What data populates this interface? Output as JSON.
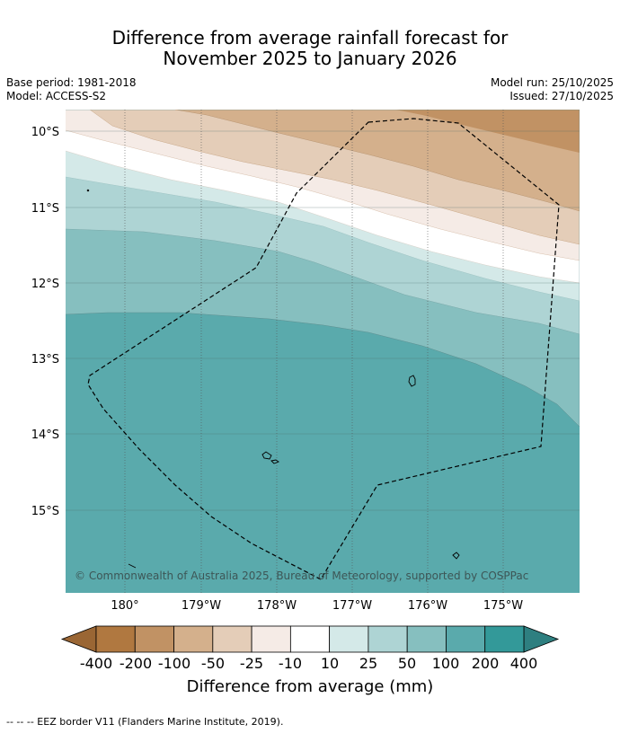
{
  "title": {
    "line1": "Difference from average rainfall forecast for",
    "line2": "November 2025 to January 2026"
  },
  "meta": {
    "base_period": "Base period: 1981-2018",
    "model": "Model: ACCESS-S2",
    "model_run": "Model run: 25/10/2025",
    "issued": "Issued: 27/10/2025"
  },
  "map": {
    "lat_labels": [
      "10°S",
      "11°S",
      "12°S",
      "13°S",
      "14°S",
      "15°S"
    ],
    "lon_labels": [
      "180°",
      "179°W",
      "178°W",
      "177°W",
      "176°W",
      "175°W"
    ],
    "copyright": "© Commonwealth of Australia 2025, Bureau of Meteorology, supported by COSPPac"
  },
  "colorbar": {
    "labels": [
      "-400",
      "-200",
      "-100",
      "-50",
      "-25",
      "-10",
      "10",
      "25",
      "50",
      "100",
      "200",
      "400"
    ],
    "colors": [
      "#b07840",
      "#c19264",
      "#d4b08c",
      "#e4cdb8",
      "#f5ebe6",
      "#ffffff",
      "#d4e9e8",
      "#aed4d4",
      "#86bfbf",
      "#5aaaac",
      "#339999"
    ],
    "low_extend_color": "#9a6634",
    "high_extend_color": "#2e7f80",
    "title": "Difference from average (mm)"
  },
  "footer": {
    "legend_text": "--  --  -- EEZ border V11 (Flanders Marine Institute, 2019)."
  }
}
